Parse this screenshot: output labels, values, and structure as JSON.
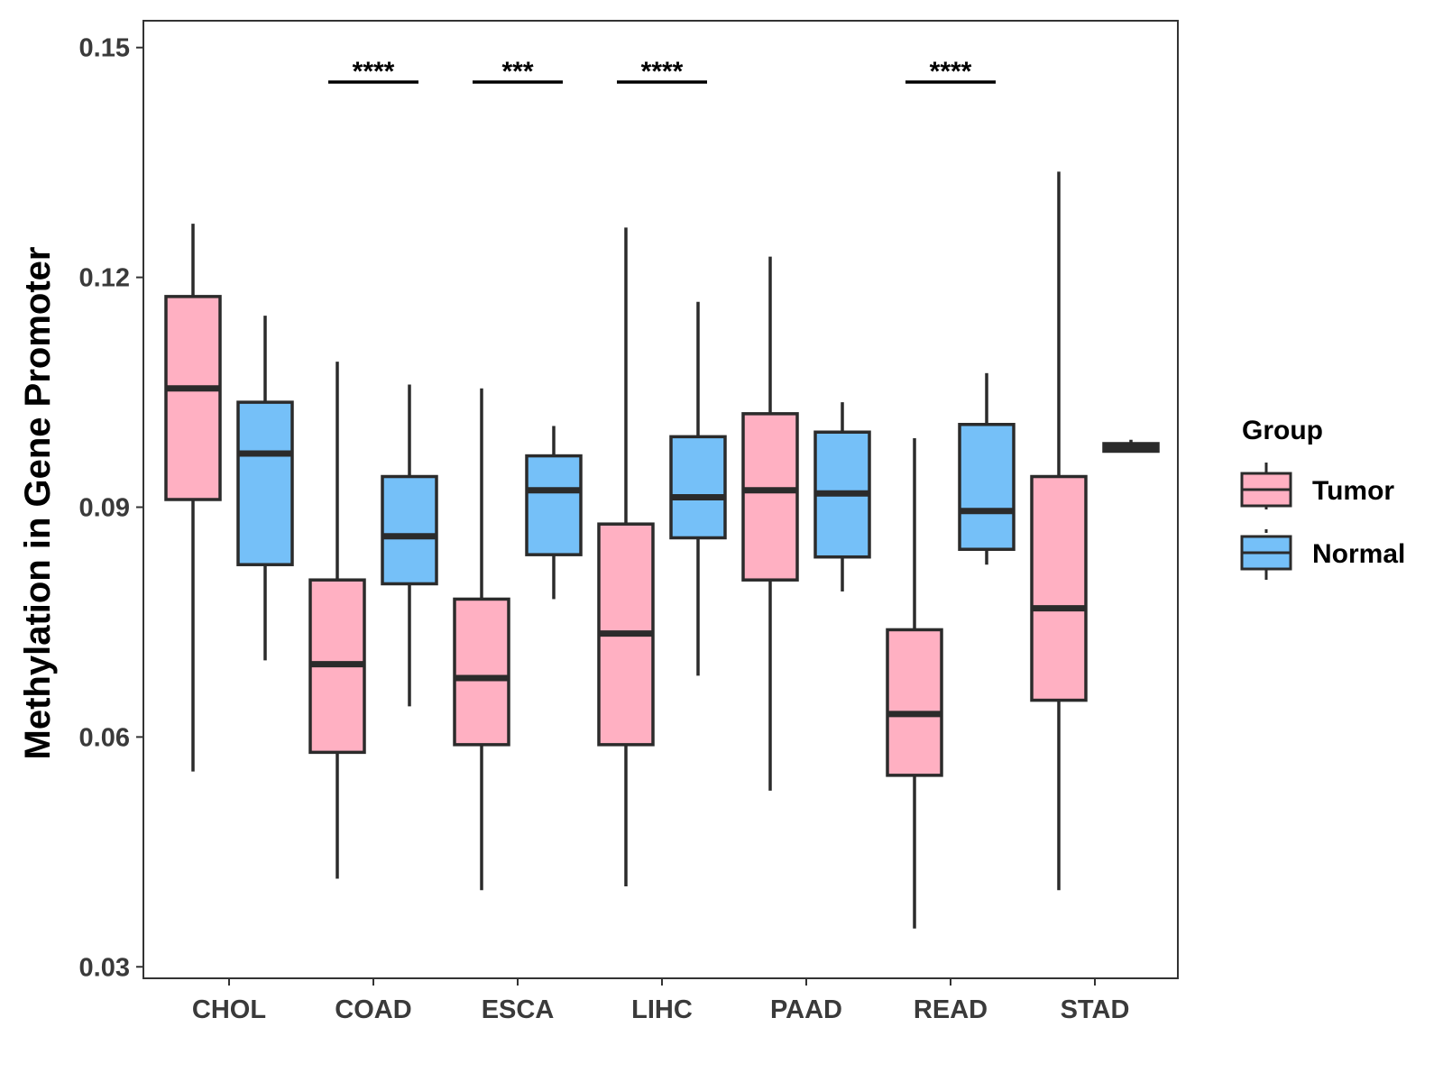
{
  "chart_data": {
    "type": "boxplot",
    "title": "",
    "xlabel": "",
    "ylabel": "Methylation in Gene Promoter",
    "ylim": [
      0.0285,
      0.1535
    ],
    "yticks": [
      0.03,
      0.06,
      0.09,
      0.12,
      0.15
    ],
    "ytick_labels": [
      "0.03",
      "0.06",
      "0.09",
      "0.12",
      "0.15"
    ],
    "categories": [
      "CHOL",
      "COAD",
      "ESCA",
      "LIHC",
      "PAAD",
      "READ",
      "STAD"
    ],
    "grid": false,
    "legend": {
      "title": "Group",
      "position": "right",
      "entries": [
        {
          "name": "Tumor",
          "color": "#FFB0C2"
        },
        {
          "name": "Normal",
          "color": "#75C0F8"
        }
      ]
    },
    "series": [
      {
        "name": "Tumor",
        "color": "#FFB0C2",
        "boxes": [
          {
            "category": "CHOL",
            "whisker_low": 0.0555,
            "q1": 0.091,
            "median": 0.1055,
            "q3": 0.1175,
            "whisker_high": 0.127
          },
          {
            "category": "COAD",
            "whisker_low": 0.0415,
            "q1": 0.058,
            "median": 0.0695,
            "q3": 0.0805,
            "whisker_high": 0.109
          },
          {
            "category": "ESCA",
            "whisker_low": 0.04,
            "q1": 0.059,
            "median": 0.0677,
            "q3": 0.078,
            "whisker_high": 0.1055
          },
          {
            "category": "LIHC",
            "whisker_low": 0.0405,
            "q1": 0.059,
            "median": 0.0735,
            "q3": 0.0878,
            "whisker_high": 0.1265
          },
          {
            "category": "PAAD",
            "whisker_low": 0.053,
            "q1": 0.0805,
            "median": 0.0922,
            "q3": 0.1022,
            "whisker_high": 0.1227
          },
          {
            "category": "READ",
            "whisker_low": 0.035,
            "q1": 0.055,
            "median": 0.063,
            "q3": 0.074,
            "whisker_high": 0.099
          },
          {
            "category": "STAD",
            "whisker_low": 0.04,
            "q1": 0.0648,
            "median": 0.0768,
            "q3": 0.094,
            "whisker_high": 0.1338
          }
        ]
      },
      {
        "name": "Normal",
        "color": "#75C0F8",
        "boxes": [
          {
            "category": "CHOL",
            "whisker_low": 0.07,
            "q1": 0.0825,
            "median": 0.097,
            "q3": 0.1037,
            "whisker_high": 0.115
          },
          {
            "category": "COAD",
            "whisker_low": 0.064,
            "q1": 0.08,
            "median": 0.0862,
            "q3": 0.094,
            "whisker_high": 0.106
          },
          {
            "category": "ESCA",
            "whisker_low": 0.078,
            "q1": 0.0838,
            "median": 0.0922,
            "q3": 0.0967,
            "whisker_high": 0.1006
          },
          {
            "category": "LIHC",
            "whisker_low": 0.068,
            "q1": 0.086,
            "median": 0.0913,
            "q3": 0.0992,
            "whisker_high": 0.1168
          },
          {
            "category": "PAAD",
            "whisker_low": 0.079,
            "q1": 0.0835,
            "median": 0.0918,
            "q3": 0.0998,
            "whisker_high": 0.1037
          },
          {
            "category": "READ",
            "whisker_low": 0.0825,
            "q1": 0.0845,
            "median": 0.0895,
            "q3": 0.1008,
            "whisker_high": 0.1075
          },
          {
            "category": "STAD",
            "whisker_low": 0.0973,
            "q1": 0.0973,
            "median": 0.0978,
            "q3": 0.0983,
            "whisker_high": 0.0988
          }
        ]
      }
    ],
    "annotations": [
      {
        "category": "COAD",
        "label": "****",
        "y": 0.1455
      },
      {
        "category": "ESCA",
        "label": "***",
        "y": 0.1455
      },
      {
        "category": "LIHC",
        "label": "****",
        "y": 0.1455
      },
      {
        "category": "READ",
        "label": "****",
        "y": 0.1455
      }
    ]
  }
}
